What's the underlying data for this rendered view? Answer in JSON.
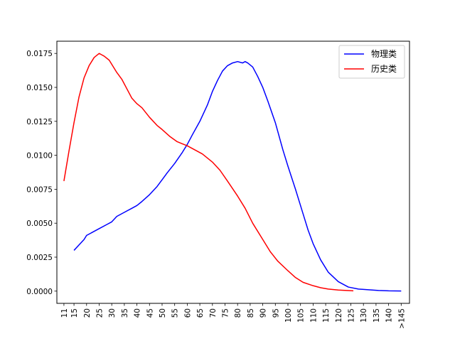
{
  "chart_data": {
    "type": "line",
    "title": "",
    "xlabel": "",
    "ylabel": "",
    "categories": [
      "11",
      "15",
      "20",
      "25",
      "30",
      "35",
      "40",
      "45",
      "50",
      "55",
      "60",
      "65",
      "70",
      "75",
      "80",
      "85",
      "90",
      "95",
      "100",
      "105",
      "110",
      "115",
      "120",
      "125",
      "130",
      "135",
      "140",
      ">145"
    ],
    "ylim": [
      -0.0009,
      0.0184
    ],
    "yticks": [
      "0.0000",
      "0.0025",
      "0.0050",
      "0.0075",
      "0.0100",
      "0.0125",
      "0.0150",
      "0.0175"
    ],
    "ytick_values": [
      0,
      0.0025,
      0.005,
      0.0075,
      0.01,
      0.0125,
      0.015,
      0.0175
    ],
    "grid": false,
    "legend_position": "top-right",
    "series": [
      {
        "name": "物理类",
        "color": "#0000ff",
        "x": [
          15,
          17,
          19,
          20,
          22,
          25,
          28,
          30,
          32,
          35,
          38,
          40,
          42,
          45,
          48,
          50,
          52,
          55,
          58,
          60,
          62,
          65,
          68,
          70,
          72,
          74,
          76,
          78,
          80,
          82,
          83,
          84,
          86,
          88,
          90,
          92,
          95,
          98,
          100,
          103,
          106,
          108,
          110,
          113,
          116,
          120,
          124,
          128,
          132,
          136,
          140,
          145
        ],
        "y": [
          0.003,
          0.0034,
          0.0038,
          0.0041,
          0.0043,
          0.0046,
          0.0049,
          0.0051,
          0.0055,
          0.0058,
          0.0061,
          0.0063,
          0.0066,
          0.0071,
          0.0077,
          0.0082,
          0.0087,
          0.0094,
          0.0102,
          0.0108,
          0.0115,
          0.0125,
          0.0137,
          0.0147,
          0.0155,
          0.0162,
          0.0166,
          0.0168,
          0.0169,
          0.0168,
          0.0169,
          0.0168,
          0.0165,
          0.0158,
          0.015,
          0.014,
          0.0124,
          0.0104,
          0.0092,
          0.0075,
          0.0057,
          0.0045,
          0.0035,
          0.0023,
          0.0014,
          0.0007,
          0.0003,
          0.00015,
          0.0001,
          5e-05,
          2e-05,
          1e-05
        ]
      },
      {
        "name": "历史类",
        "color": "#ff0000",
        "x": [
          11,
          13,
          15,
          17,
          19,
          21,
          23,
          25,
          26,
          27,
          29,
          30,
          32,
          34,
          36,
          38,
          40,
          42,
          45,
          48,
          50,
          53,
          56,
          60,
          63,
          66,
          70,
          73,
          76,
          80,
          83,
          86,
          90,
          93,
          96,
          100,
          103,
          106,
          110,
          113,
          116,
          120,
          124,
          126
        ],
        "y": [
          0.0081,
          0.0103,
          0.0124,
          0.0143,
          0.0157,
          0.0166,
          0.0172,
          0.0175,
          0.0174,
          0.0173,
          0.017,
          0.0167,
          0.0161,
          0.0156,
          0.0149,
          0.0142,
          0.0138,
          0.0135,
          0.0128,
          0.0122,
          0.0119,
          0.0114,
          0.011,
          0.0107,
          0.0104,
          0.0101,
          0.0095,
          0.0089,
          0.0081,
          0.007,
          0.0061,
          0.005,
          0.0038,
          0.0029,
          0.0022,
          0.0015,
          0.001,
          0.00065,
          0.0004,
          0.00025,
          0.00015,
          8e-05,
          4e-05,
          2e-05
        ]
      }
    ]
  }
}
